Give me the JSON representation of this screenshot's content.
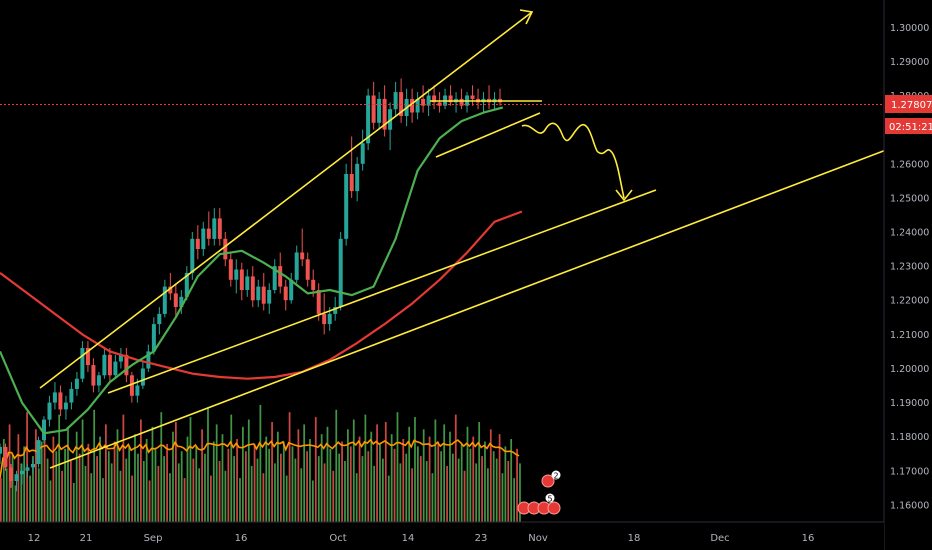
{
  "chart_data": {
    "type": "candlestick",
    "title": "",
    "xlabel": "",
    "ylabel": "",
    "ylim": [
      1.155,
      1.308
    ],
    "y_ticks": [
      "1.16000",
      "1.17000",
      "1.18000",
      "1.19000",
      "1.20000",
      "1.21000",
      "1.22000",
      "1.23000",
      "1.24000",
      "1.25000",
      "1.26000",
      "1.27000",
      "1.28000",
      "1.29000",
      "1.30000"
    ],
    "x_ticks": [
      "12",
      "21",
      "Sep",
      "16",
      "Oct",
      "14",
      "23",
      "Nov",
      "18",
      "Dec",
      "16"
    ],
    "current_price": {
      "label": "1.27807",
      "value": 1.27807
    },
    "countdown": "02:51:21",
    "grid": false,
    "legend": "none",
    "colors": {
      "bull": "#26a69a",
      "bear": "#ef5350",
      "volume_up": "#4caf50",
      "volume_down": "#ef5350",
      "ema_fast": "#4caf50",
      "ema_slow": "#e53935",
      "volume_ma": "#ff9800",
      "drawing": "#ffeb3b",
      "price_label": "#e53935"
    },
    "series": [
      {
        "kind": "ma",
        "points": [
          [
            0,
            1.228
          ],
          [
            10,
            1.222
          ],
          [
            20,
            1.216
          ],
          [
            30,
            1.21
          ],
          [
            40,
            1.205
          ],
          [
            50,
            1.2025
          ],
          [
            60,
            1.2005
          ],
          [
            70,
            1.1985
          ],
          [
            80,
            1.1975
          ],
          [
            90,
            1.197
          ],
          [
            100,
            1.1975
          ],
          [
            110,
            1.199
          ],
          [
            120,
            1.2025
          ],
          [
            130,
            1.2075
          ],
          [
            140,
            1.213
          ],
          [
            150,
            1.219
          ],
          [
            160,
            1.226
          ],
          [
            170,
            1.234
          ],
          [
            180,
            1.243
          ],
          [
            190,
            1.246
          ]
        ]
      },
      {
        "kind": "ma",
        "points": [
          [
            0,
            1.205
          ],
          [
            8,
            1.19
          ],
          [
            16,
            1.181
          ],
          [
            24,
            1.182
          ],
          [
            32,
            1.188
          ],
          [
            40,
            1.196
          ],
          [
            48,
            1.201
          ],
          [
            56,
            1.205
          ],
          [
            64,
            1.215
          ],
          [
            72,
            1.227
          ],
          [
            80,
            1.2335
          ],
          [
            88,
            1.2345
          ],
          [
            96,
            1.231
          ],
          [
            104,
            1.227
          ],
          [
            112,
            1.222
          ],
          [
            120,
            1.223
          ],
          [
            128,
            1.2215
          ],
          [
            136,
            1.224
          ],
          [
            144,
            1.238
          ],
          [
            152,
            1.258
          ],
          [
            160,
            1.2675
          ],
          [
            168,
            1.2725
          ],
          [
            176,
            1.275
          ],
          [
            183,
            1.2765
          ]
        ]
      },
      {
        "kind": "ohlc",
        "points": [
          [
            0,
            1.175,
            1.178,
            1.172,
            1.177
          ],
          [
            2,
            1.177,
            1.178,
            1.17,
            1.171
          ],
          [
            4,
            1.171,
            1.172,
            1.165,
            1.167
          ],
          [
            6,
            1.167,
            1.17,
            1.164,
            1.169
          ],
          [
            8,
            1.169,
            1.172,
            1.166,
            1.17
          ],
          [
            10,
            1.17,
            1.172,
            1.168,
            1.171
          ],
          [
            12,
            1.171,
            1.173,
            1.169,
            1.172
          ],
          [
            14,
            1.172,
            1.18,
            1.171,
            1.179
          ],
          [
            16,
            1.179,
            1.186,
            1.178,
            1.185
          ],
          [
            18,
            1.185,
            1.192,
            1.183,
            1.19
          ],
          [
            20,
            1.19,
            1.196,
            1.188,
            1.193
          ],
          [
            22,
            1.193,
            1.195,
            1.186,
            1.188
          ],
          [
            24,
            1.188,
            1.192,
            1.185,
            1.19
          ],
          [
            26,
            1.19,
            1.196,
            1.188,
            1.194
          ],
          [
            28,
            1.194,
            1.199,
            1.192,
            1.197
          ],
          [
            30,
            1.197,
            1.208,
            1.196,
            1.206
          ],
          [
            32,
            1.206,
            1.208,
            1.199,
            1.201
          ],
          [
            34,
            1.201,
            1.203,
            1.193,
            1.195
          ],
          [
            36,
            1.195,
            1.199,
            1.193,
            1.198
          ],
          [
            38,
            1.198,
            1.206,
            1.197,
            1.204
          ],
          [
            40,
            1.204,
            1.206,
            1.196,
            1.198
          ],
          [
            42,
            1.198,
            1.204,
            1.197,
            1.202
          ],
          [
            44,
            1.202,
            1.206,
            1.2,
            1.204
          ],
          [
            46,
            1.204,
            1.206,
            1.196,
            1.198
          ],
          [
            48,
            1.198,
            1.199,
            1.19,
            1.192
          ],
          [
            50,
            1.192,
            1.197,
            1.19,
            1.195
          ],
          [
            52,
            1.195,
            1.202,
            1.194,
            1.2
          ],
          [
            54,
            1.2,
            1.207,
            1.199,
            1.205
          ],
          [
            56,
            1.205,
            1.215,
            1.204,
            1.213
          ],
          [
            58,
            1.213,
            1.218,
            1.21,
            1.216
          ],
          [
            60,
            1.216,
            1.226,
            1.215,
            1.224
          ],
          [
            62,
            1.224,
            1.228,
            1.22,
            1.222
          ],
          [
            64,
            1.222,
            1.225,
            1.215,
            1.218
          ],
          [
            66,
            1.218,
            1.223,
            1.216,
            1.221
          ],
          [
            68,
            1.221,
            1.23,
            1.22,
            1.228
          ],
          [
            70,
            1.228,
            1.24,
            1.226,
            1.238
          ],
          [
            72,
            1.238,
            1.242,
            1.232,
            1.235
          ],
          [
            74,
            1.235,
            1.243,
            1.233,
            1.241
          ],
          [
            76,
            1.241,
            1.246,
            1.236,
            1.238
          ],
          [
            78,
            1.238,
            1.247,
            1.236,
            1.244
          ],
          [
            80,
            1.244,
            1.247,
            1.236,
            1.238
          ],
          [
            82,
            1.238,
            1.24,
            1.23,
            1.232
          ],
          [
            84,
            1.232,
            1.234,
            1.224,
            1.226
          ],
          [
            86,
            1.226,
            1.232,
            1.222,
            1.229
          ],
          [
            88,
            1.229,
            1.231,
            1.22,
            1.223
          ],
          [
            90,
            1.223,
            1.229,
            1.221,
            1.227
          ],
          [
            92,
            1.227,
            1.23,
            1.218,
            1.22
          ],
          [
            94,
            1.22,
            1.226,
            1.218,
            1.224
          ],
          [
            96,
            1.224,
            1.228,
            1.217,
            1.219
          ],
          [
            98,
            1.219,
            1.225,
            1.216,
            1.223
          ],
          [
            100,
            1.223,
            1.232,
            1.222,
            1.23
          ],
          [
            102,
            1.23,
            1.234,
            1.222,
            1.224
          ],
          [
            104,
            1.224,
            1.226,
            1.217,
            1.22
          ],
          [
            106,
            1.22,
            1.228,
            1.219,
            1.226
          ],
          [
            108,
            1.226,
            1.236,
            1.225,
            1.234
          ],
          [
            110,
            1.234,
            1.241,
            1.23,
            1.232
          ],
          [
            112,
            1.232,
            1.234,
            1.224,
            1.226
          ],
          [
            114,
            1.226,
            1.229,
            1.221,
            1.223
          ],
          [
            116,
            1.223,
            1.225,
            1.214,
            1.216
          ],
          [
            118,
            1.216,
            1.222,
            1.21,
            1.213
          ],
          [
            120,
            1.213,
            1.218,
            1.211,
            1.216
          ],
          [
            122,
            1.216,
            1.221,
            1.214,
            1.218
          ],
          [
            124,
            1.218,
            1.24,
            1.217,
            1.238
          ],
          [
            126,
            1.238,
            1.26,
            1.236,
            1.257
          ],
          [
            128,
            1.257,
            1.268,
            1.25,
            1.252
          ],
          [
            130,
            1.252,
            1.262,
            1.249,
            1.26
          ],
          [
            132,
            1.26,
            1.27,
            1.258,
            1.266
          ],
          [
            134,
            1.266,
            1.282,
            1.264,
            1.28
          ],
          [
            136,
            1.28,
            1.284,
            1.27,
            1.272
          ],
          [
            138,
            1.272,
            1.281,
            1.27,
            1.279
          ],
          [
            140,
            1.279,
            1.283,
            1.268,
            1.27
          ],
          [
            142,
            1.27,
            1.278,
            1.264,
            1.276
          ],
          [
            144,
            1.276,
            1.284,
            1.274,
            1.281
          ],
          [
            146,
            1.281,
            1.285,
            1.272,
            1.274
          ],
          [
            148,
            1.274,
            1.282,
            1.271,
            1.279
          ],
          [
            150,
            1.279,
            1.282,
            1.272,
            1.275
          ],
          [
            152,
            1.275,
            1.281,
            1.273,
            1.279
          ],
          [
            154,
            1.279,
            1.283,
            1.275,
            1.277
          ],
          [
            156,
            1.277,
            1.282,
            1.274,
            1.28
          ],
          [
            158,
            1.28,
            1.283,
            1.276,
            1.278
          ],
          [
            160,
            1.278,
            1.281,
            1.275,
            1.277
          ],
          [
            162,
            1.277,
            1.282,
            1.276,
            1.28
          ],
          [
            164,
            1.28,
            1.283,
            1.277,
            1.278
          ],
          [
            166,
            1.278,
            1.281,
            1.275,
            1.279
          ],
          [
            168,
            1.279,
            1.282,
            1.276,
            1.277
          ],
          [
            170,
            1.277,
            1.281,
            1.275,
            1.28
          ],
          [
            172,
            1.28,
            1.283,
            1.277,
            1.279
          ],
          [
            174,
            1.279,
            1.282,
            1.276,
            1.278
          ],
          [
            176,
            1.278,
            1.281,
            1.275,
            1.279
          ],
          [
            178,
            1.279,
            1.283,
            1.276,
            1.278
          ],
          [
            180,
            1.278,
            1.281,
            1.276,
            1.279
          ],
          [
            182,
            1.279,
            1.282,
            1.277,
            1.278
          ]
        ]
      },
      {
        "kind": "volume",
        "values": [
          18,
          34,
          22,
          40,
          28,
          15,
          36,
          24,
          31,
          45,
          19,
          27,
          38,
          22,
          33,
          41,
          26,
          17,
          35,
          29,
          44,
          21,
          30,
          39,
          25,
          16,
          37,
          28,
          42,
          23,
          32,
          20,
          46,
          27,
          35,
          18,
          40,
          29,
          24,
          33,
          38,
          21,
          44,
          26,
          31,
          19,
          36,
          28,
          42,
          25,
          34,
          17,
          39,
          30,
          23,
          45,
          27,
          32,
          20,
          37,
          41,
          24,
          29,
          18,
          35,
          43,
          26,
          31,
          22,
          38,
          28,
          47,
          19,
          33,
          40,
          25,
          36,
          21,
          30,
          44,
          27,
          34,
          18,
          39,
          29,
          42,
          23,
          32,
          26,
          48,
          20,
          35,
          30,
          41,
          24,
          37,
          28,
          33,
          19,
          45,
          31,
          26,
          38,
          22,
          40,
          29,
          34,
          17,
          43,
          27,
          36,
          24,
          39,
          30,
          21,
          46,
          28,
          33,
          25,
          38,
          31,
          42,
          20,
          35,
          27,
          44,
          29,
          37,
          23,
          40,
          32,
          26,
          41,
          19,
          36,
          30,
          45,
          24,
          34,
          28,
          39,
          22,
          43,
          31,
          27,
          38,
          25,
          35,
          20,
          42,
          33,
          29,
          40,
          23,
          37,
          28,
          44,
          26,
          32,
          21,
          39,
          30,
          35,
          24,
          41,
          27,
          33,
          22,
          38,
          29,
          26,
          36,
          20,
          31,
          25,
          34,
          18,
          30,
          24
        ]
      }
    ]
  },
  "badges": {
    "upper": "2",
    "lower": "5"
  }
}
